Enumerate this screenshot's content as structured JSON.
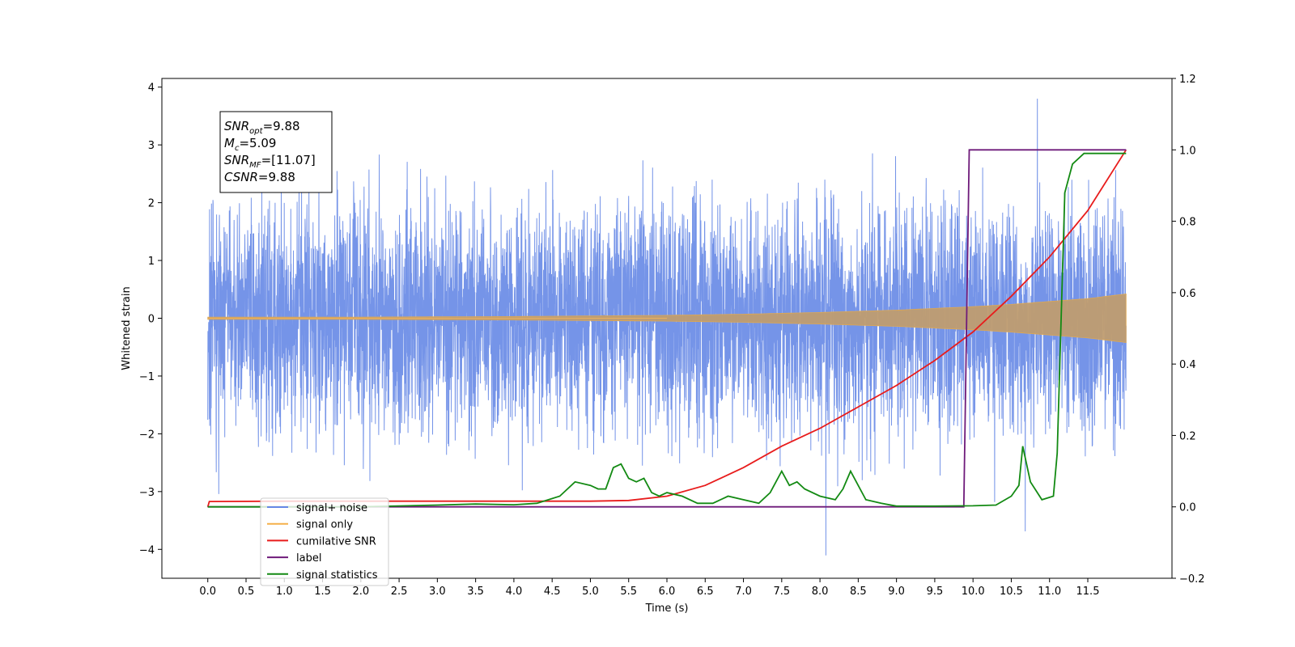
{
  "chart_data": {
    "type": "line",
    "xlabel": "Time (s)",
    "ylabel": "Whitened strain",
    "xlim": [
      -0.6,
      12.6
    ],
    "ylim": [
      -4.5,
      4.15
    ],
    "ylim_right": [
      -0.2,
      1.2
    ],
    "x_ticks": [
      "0.0",
      "0.5",
      "1.0",
      "1.5",
      "2.0",
      "2.5",
      "3.0",
      "3.5",
      "4.0",
      "4.5",
      "5.0",
      "5.5",
      "6.0",
      "6.5",
      "7.0",
      "7.5",
      "8.0",
      "8.5",
      "9.0",
      "9.5",
      "10.0",
      "10.5",
      "11.0",
      "11.5"
    ],
    "y_ticks_left": [
      "−4",
      "−3",
      "−2",
      "−1",
      "0",
      "1",
      "2",
      "3",
      "4"
    ],
    "y_ticks_right": [
      "−0.2",
      "0.0",
      "0.2",
      "0.4",
      "0.6",
      "0.8",
      "1.0",
      "1.2"
    ],
    "grid": false,
    "legend_position": "lower-left",
    "annotation": {
      "lines": [
        {
          "base": "SNR",
          "sub": "opt",
          "rest": "=9.88"
        },
        {
          "base": "M",
          "sub": "c",
          "rest": "=5.09"
        },
        {
          "base": "SNR",
          "sub": "MF",
          "rest": "=[11.07]"
        },
        {
          "base": "CSNR",
          "sub": "",
          "rest": "=9.88"
        }
      ]
    },
    "series": [
      {
        "name": "signal+ noise",
        "axis": "left",
        "color": "#6688e6",
        "kind": "noise",
        "x_range": [
          0.0,
          12.0
        ],
        "typical_amplitude": 2.2,
        "peak_amplitude": 3.8
      },
      {
        "name": "signal only",
        "axis": "left",
        "color": "#f5b04a",
        "kind": "chirp-envelope",
        "x": [
          0.0,
          2.0,
          4.0,
          6.0,
          7.0,
          8.0,
          9.0,
          10.0,
          10.5,
          11.0,
          11.5,
          12.0
        ],
        "envelope": [
          0.02,
          0.02,
          0.03,
          0.05,
          0.07,
          0.1,
          0.14,
          0.2,
          0.24,
          0.29,
          0.34,
          0.42
        ]
      },
      {
        "name": "cumilative SNR",
        "axis": "right",
        "color": "#e81c1c",
        "x": [
          0.0,
          0.02,
          1.0,
          2.0,
          3.0,
          4.0,
          5.0,
          5.5,
          6.0,
          6.5,
          7.0,
          7.5,
          8.0,
          8.5,
          9.0,
          9.5,
          10.0,
          10.5,
          11.0,
          11.5,
          12.0
        ],
        "values": [
          0.0,
          0.015,
          0.016,
          0.016,
          0.016,
          0.016,
          0.016,
          0.018,
          0.03,
          0.06,
          0.11,
          0.17,
          0.22,
          0.28,
          0.34,
          0.41,
          0.49,
          0.59,
          0.7,
          0.83,
          1.0
        ]
      },
      {
        "name": "label",
        "axis": "right",
        "color": "#6e1a7a",
        "x": [
          0.0,
          9.88,
          9.95,
          12.0
        ],
        "values": [
          0.0,
          0.0,
          1.0,
          1.0
        ]
      },
      {
        "name": "signal statistics",
        "axis": "right",
        "color": "#138a13",
        "x": [
          0.0,
          1.0,
          2.0,
          3.0,
          3.5,
          4.0,
          4.3,
          4.6,
          4.8,
          5.0,
          5.1,
          5.2,
          5.3,
          5.4,
          5.5,
          5.6,
          5.7,
          5.8,
          5.9,
          6.0,
          6.2,
          6.4,
          6.6,
          6.8,
          7.0,
          7.2,
          7.35,
          7.5,
          7.6,
          7.7,
          7.8,
          8.0,
          8.2,
          8.3,
          8.4,
          8.6,
          8.8,
          9.0,
          9.5,
          10.0,
          10.3,
          10.5,
          10.6,
          10.65,
          10.75,
          10.9,
          11.05,
          11.1,
          11.2,
          11.3,
          11.45,
          11.7,
          12.0
        ],
        "values": [
          0.0,
          0.0,
          0.0,
          0.005,
          0.008,
          0.006,
          0.01,
          0.03,
          0.07,
          0.06,
          0.05,
          0.05,
          0.11,
          0.12,
          0.08,
          0.07,
          0.08,
          0.04,
          0.03,
          0.04,
          0.03,
          0.01,
          0.01,
          0.03,
          0.02,
          0.01,
          0.04,
          0.1,
          0.06,
          0.07,
          0.05,
          0.03,
          0.02,
          0.05,
          0.1,
          0.02,
          0.01,
          0.002,
          0.002,
          0.003,
          0.005,
          0.03,
          0.06,
          0.17,
          0.07,
          0.02,
          0.03,
          0.15,
          0.88,
          0.96,
          0.99,
          0.99,
          0.99
        ]
      }
    ]
  }
}
